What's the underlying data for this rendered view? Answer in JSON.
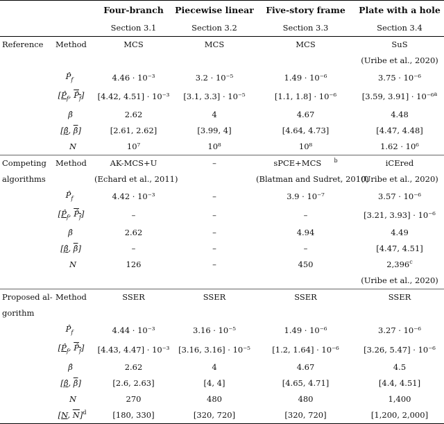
{
  "header": {
    "col2_title": "Four-branch",
    "col3_title": "Piecewise linear",
    "col4_title": "Five-story frame",
    "col5_title": "Plate with a hole",
    "col2_section": "Section 3.1",
    "col3_section": "Section 3.2",
    "col4_section": "Section 3.3",
    "col5_section": "Section 3.4"
  },
  "groups": {
    "reference": "Reference",
    "competing_line1": "Competing",
    "competing_line2": "algorithms",
    "proposed_line1": "Proposed al-",
    "proposed_line2": "gorithm"
  },
  "labels": {
    "method": "Method",
    "pf": "P̂_f",
    "pf_bounds": "[P̂_f, P̂_f]",
    "beta": "β̂",
    "beta_bounds": "[β̂, β̂]",
    "n": "N",
    "n_bounds": "[N, N]"
  },
  "reference": {
    "method": [
      "MCS",
      "MCS",
      "MCS",
      "SuS"
    ],
    "method_cite": [
      "",
      "",
      "",
      "(Uribe et al., 2020)"
    ],
    "pf": [
      "4.46 · 10⁻³",
      "3.2 · 10⁻⁵",
      "1.49 · 10⁻⁶",
      "3.75 · 10⁻⁶"
    ],
    "pf_bounds": [
      "[4.42, 4.51] · 10⁻³",
      "[3.1, 3.3] · 10⁻⁵",
      "[1.1, 1.8] · 10⁻⁶",
      "[3.59, 3.91] · 10⁻⁶"
    ],
    "pf_bounds_note": "a",
    "beta": [
      "2.62",
      "4",
      "4.67",
      "4.48"
    ],
    "beta_bounds": [
      "[2.61, 2.62]",
      "[3.99, 4]",
      "[4.64, 4.73]",
      "[4.47, 4.48]"
    ],
    "n": [
      "10⁷",
      "10⁸",
      "10⁸",
      "1.62 · 10⁶"
    ]
  },
  "competing": {
    "method": [
      "AK-MCS+U",
      "–",
      "sPCE+MCS",
      "iCEred"
    ],
    "method_note": "b",
    "method_cite": [
      "(Echard et al., 2011)",
      "",
      "(Blatman and Sudret, 2010)",
      "(Uribe et al., 2020)"
    ],
    "pf": [
      "4.42 · 10⁻³",
      "–",
      "3.9 · 10⁻⁷",
      "3.57 · 10⁻⁶"
    ],
    "pf_bounds": [
      "–",
      "–",
      "–",
      "[3.21, 3.93] · 10⁻⁶"
    ],
    "beta": [
      "2.62",
      "–",
      "4.94",
      "4.49"
    ],
    "beta_bounds": [
      "–",
      "–",
      "–",
      "[4.47, 4.51]"
    ],
    "n": [
      "126",
      "–",
      "450",
      "2,396"
    ],
    "n_note": "c",
    "n_cite": "(Uribe et al., 2020)"
  },
  "proposed": {
    "method": [
      "SSER",
      "SSER",
      "SSER",
      "SSER"
    ],
    "pf": [
      "4.44 · 10⁻³",
      "3.16 · 10⁻⁵",
      "1.49 · 10⁻⁶",
      "3.27 · 10⁻⁶"
    ],
    "pf_bounds": [
      "[4.43, 4.47] · 10⁻³",
      "[3.16, 3.16] · 10⁻⁵",
      "[1.2, 1.64] · 10⁻⁶",
      "[3.26, 5.47] · 10⁻⁶"
    ],
    "beta": [
      "2.62",
      "4",
      "4.67",
      "4.5"
    ],
    "beta_bounds": [
      "[2.6, 2.63]",
      "[4, 4]",
      "[4.65, 4.71]",
      "[4.4, 4.51]"
    ],
    "n": [
      "270",
      "480",
      "480",
      "1,400"
    ],
    "n_bounds": [
      "[180, 330]",
      "[320, 720]",
      "[320, 720]",
      "[1,200, 2,000]"
    ],
    "n_bounds_note": "d"
  }
}
